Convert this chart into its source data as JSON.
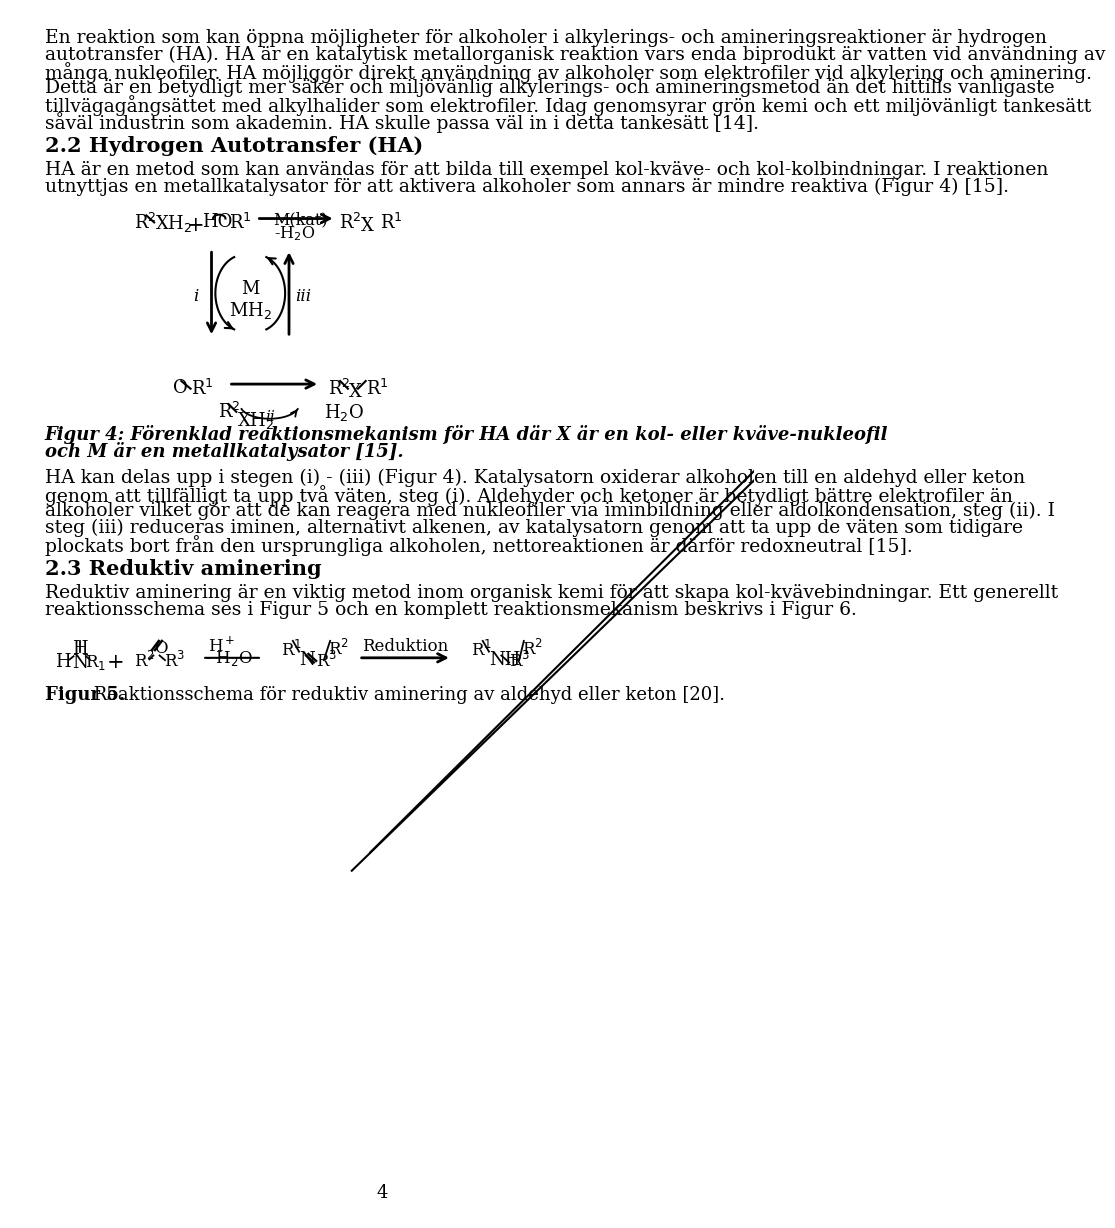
{
  "background": "#ffffff",
  "text_color": "#000000",
  "page_number": "4",
  "para1": "En reaktion som kan öppna möjligheter för alkoholer i alkylerings- och amineringsreaktioner är hydrogen autotransfer (HA). HA är en katalytisk metallorganisk reaktion vars enda biprodukt är vatten vid användning av många nukleofiler. HA möjliggör direkt användning av alkoholer som elektrofiler vid alkylering och aminering. Detta är en betydligt mer säker och miljövänlig alkylerings- och amineringsmetod än det hittills vanligaste tillvägagångsättet med alkylhalider som elektrofiler. Idag genomsyrar grön kemi och ett miljövänligt tankesätt såväl industrin som akademin. HA skulle passa väl in i detta tankesätt",
  "para1_ref": "[14]",
  "section_title": "2.2 Hydrogen Autotransfer (HA)",
  "para2": "HA är en metod som kan användas för att bilda till exempel kol-kväve- och kol-kolbindningar. I reaktionen utnyttjas en metallkatalysator för att aktivera alkoholer som annars är mindre reaktiva (Figur 4)",
  "para2_ref": "[15]",
  "fig4_caption_line1": "Figur 4: Förenklad reaktionsmekanism för HA där X är en kol- eller kväve-nukleofil",
  "fig4_caption_line2": "och M är en metallkatalysator",
  "fig4_caption_ref": "[15]",
  "para3": "HA kan delas upp i stegen (i) - (iii) (Figur 4). Katalysatorn oxiderar alkoholen till en aldehyd eller keton genom att tillfälligt ta upp två väten, steg (i). Aldehyder och ketoner är betydligt bättre elektrofiler än alkoholer vilket gör att de kan reagera med nukleofiler via iminbildning eller aldolkondensation, steg (ii). I steg (iii) reduceras iminen, alternativt alkenen, av katalysatorn genom att ta upp de väten som tidigare plockats bort från den ursprungliga alkoholen, nettoreaktionen är därför redoxneutral",
  "para3_ref": "[15]",
  "section2_title": "2.3 Reduktiv aminering",
  "para4": "Reduktiv aminering är en viktig metod inom organisk kemi för att skapa kol-kvävebindningar. Ett generellt reaktionsschema ses i Figur 5 och en komplett reaktionsmekanism beskrivs i Figur 6.",
  "fig5_caption": "Figur 5.",
  "fig5_caption_rest": " Reaktionsschema för reduktiv aminering av aldehyd eller keton",
  "fig5_ref": "[20]"
}
